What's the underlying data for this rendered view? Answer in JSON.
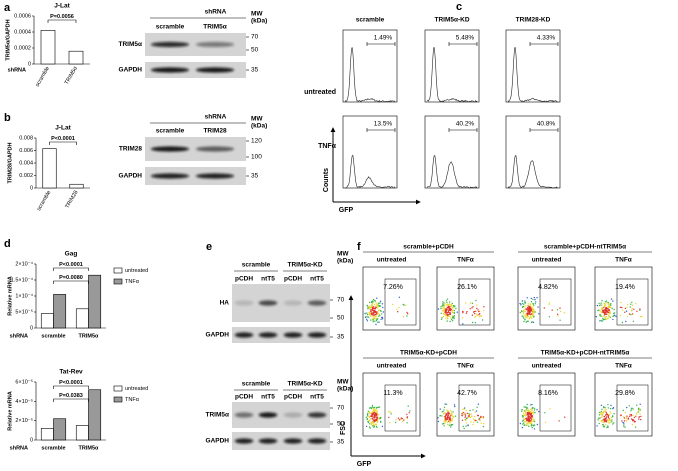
{
  "panel_labels": [
    "a",
    "b",
    "c",
    "d",
    "e",
    "f"
  ],
  "chart_data": [
    {
      "type": "bar",
      "title": "J-Lat",
      "y_label": "TRIM5α/GAPDH",
      "x_label": "shRNA",
      "categories": [
        "scramble",
        "TRIM5α"
      ],
      "values": [
        0.00042,
        0.00016
      ],
      "color": "#ffffff",
      "ylim": [
        0,
        0.0006
      ],
      "yticks": [
        0,
        0.0002,
        0.0004,
        0.0006
      ],
      "annotations": [
        "P=0.0056"
      ]
    },
    {
      "type": "bar",
      "title": "J-Lat",
      "y_label": "TRIM28/GAPDH",
      "categories": [
        "scramble",
        "TRIM28"
      ],
      "values": [
        0.0063,
        0.0006
      ],
      "color": "#ffffff",
      "ylim": [
        0,
        0.008
      ],
      "yticks": [
        0,
        0.002,
        0.004,
        0.006,
        0.008
      ],
      "annotations": [
        "P<0.0001"
      ]
    },
    {
      "type": "bar",
      "title": "Gag",
      "y_label": "Relative mRNA",
      "x_label": "shRNA",
      "categories": [
        "scramble",
        "TRIM5α"
      ],
      "series": [
        {
          "name": "untreated",
          "color": "#ffffff",
          "values": [
            4.5e-05,
            6e-05
          ]
        },
        {
          "name": "TNFα",
          "color": "#999999",
          "values": [
            0.000105,
            0.000165
          ]
        }
      ],
      "ylim": [
        0,
        0.0002
      ],
      "yticks": [
        0,
        {
          "value": 5e-05,
          "label": "5×10⁻⁵"
        },
        {
          "value": 0.0001,
          "label": "1×10⁻⁴"
        },
        {
          "value": 0.00015,
          "label": "1.5×10⁻⁴"
        },
        {
          "value": 0.0002,
          "label": "2×10⁻⁴"
        }
      ],
      "annotations": [
        "P=0.0080",
        "P<0.0001"
      ]
    },
    {
      "type": "bar",
      "title": "Tat-Rev",
      "y_label": "Relative mRNA",
      "x_label": "shRNA",
      "categories": [
        "scramble",
        "TRIM5α"
      ],
      "series": [
        {
          "name": "untreated",
          "color": "#ffffff",
          "values": [
            1.2e-05,
            1.5e-05
          ]
        },
        {
          "name": "TNFα",
          "color": "#999999",
          "values": [
            2.2e-05,
            5.2e-05
          ]
        }
      ],
      "ylim": [
        0,
        6e-05
      ],
      "yticks": [
        0,
        {
          "value": 2e-05,
          "label": "2×10⁻⁵"
        },
        {
          "value": 4e-05,
          "label": "4×10⁻⁵"
        },
        {
          "value": 6e-05,
          "label": "6×10⁻⁵"
        }
      ],
      "annotations": [
        "P=0.0383",
        "P<0.0001"
      ]
    }
  ],
  "blots": [
    {
      "group_label": "shRNA",
      "lanes": [
        "scramble",
        "TRIM5α"
      ],
      "mw_label": [
        "MW",
        "(kDa)"
      ],
      "bands": [
        {
          "name": "TRIM5α",
          "mw": [
            "70",
            "50"
          ]
        },
        {
          "name": "GAPDH",
          "mw": [
            "35"
          ]
        }
      ]
    },
    {
      "group_label": "shRNA",
      "lanes": [
        "scramble",
        "TRIM28"
      ],
      "mw_label": [
        "MW",
        "(kDa)"
      ],
      "bands": [
        {
          "name": "TRIM28",
          "mw": [
            "120",
            "100"
          ]
        },
        {
          "name": "GAPDH",
          "mw": [
            "35"
          ]
        }
      ]
    },
    {
      "groups": [
        "scramble",
        "TRIM5α-KD"
      ],
      "lanes": [
        "pCDH",
        "ntT5",
        "pCDH",
        "ntT5"
      ],
      "mw_label": [
        "MW",
        "(kDa)"
      ],
      "bands": [
        {
          "name": "HA",
          "mw": [
            "70",
            "50"
          ]
        },
        {
          "name": "GAPDH",
          "mw": [
            "35"
          ]
        }
      ]
    },
    {
      "groups": [
        "scramble",
        "TRIM5α-KD"
      ],
      "lanes": [
        "pCDH",
        "ntT5",
        "pCDH",
        "ntT5"
      ],
      "mw_label": [
        "MW",
        "(kDa)"
      ],
      "bands": [
        {
          "name": "TRIM5α",
          "mw": [
            "70",
            "50"
          ]
        },
        {
          "name": "GAPDH",
          "mw": [
            "35"
          ]
        }
      ]
    }
  ],
  "flow_histograms": {
    "columns": [
      "scramble",
      "TRIM5α-KD",
      "TRIM28-KD"
    ],
    "rows": [
      "untreated",
      "TNFα"
    ],
    "gates": [
      [
        "1.49%",
        "5.48%",
        "4.33%"
      ],
      [
        "13.5%",
        "40.2%",
        "40.8%"
      ]
    ],
    "y_label": "Counts",
    "x_label": "GFP"
  },
  "flow_dotplots": {
    "groups": [
      {
        "title": "scramble+pCDH",
        "conditions": [
          "untreated",
          "TNFα"
        ],
        "gates": [
          "7.26%",
          "26.1%"
        ]
      },
      {
        "title": "scramble+pCDH-ntTRIM5α",
        "conditions": [
          "untreated",
          "TNFα"
        ],
        "gates": [
          "4.82%",
          "19.4%"
        ]
      },
      {
        "title": "TRIM5α-KD+pCDH",
        "conditions": [
          "untreated",
          "TNFα"
        ],
        "gates": [
          "11.3%",
          "42.7%"
        ]
      },
      {
        "title": "TRIM5α-KD+pCDH-ntTRIM5α",
        "conditions": [
          "untreated",
          "TNFα"
        ],
        "gates": [
          "8.16%",
          "29.8%"
        ]
      }
    ],
    "y_label": "FSC",
    "x_label": "GFP"
  }
}
